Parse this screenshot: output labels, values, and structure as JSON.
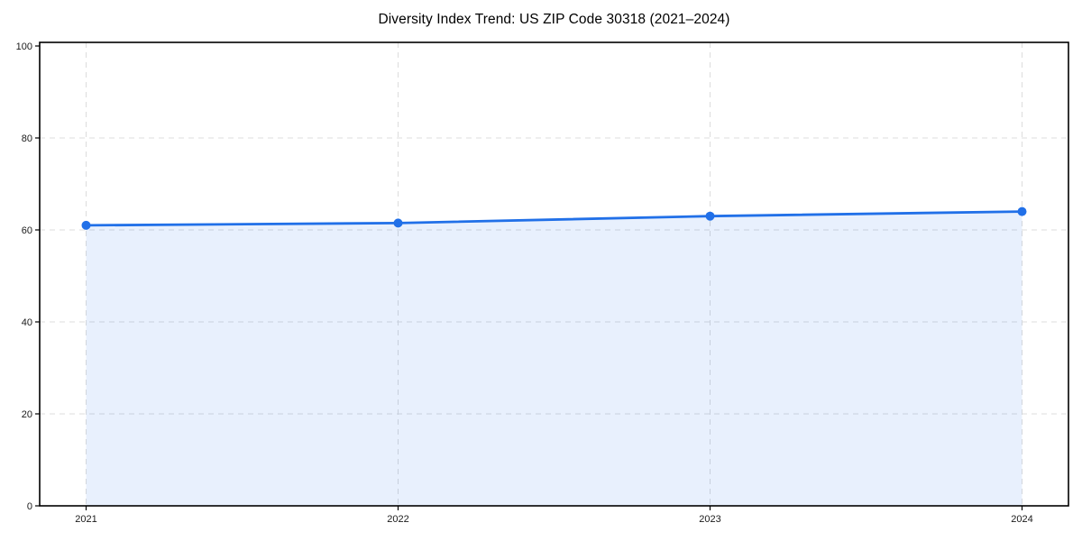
{
  "page": {
    "background": "#ffffff"
  },
  "chart_data": {
    "type": "area",
    "title": "Diversity Index Trend: US ZIP Code 30318 (2021–2024)",
    "x": [
      "2021",
      "2022",
      "2023",
      "2024"
    ],
    "series": [
      {
        "name": "Diversity Index",
        "values": [
          61,
          61.5,
          63,
          64
        ]
      }
    ],
    "xlabel": "",
    "ylabel": "",
    "ylim": [
      0,
      100
    ],
    "yticks": [
      0,
      20,
      40,
      60,
      80,
      100
    ],
    "grid": true,
    "grid_style": "dashed",
    "legend": "none",
    "marker": {
      "shape": "circle",
      "size": 5
    },
    "colors": {
      "line": "#2170e8",
      "fill": "#2170e8",
      "fill_opacity": 0.1,
      "grid": "#dcdcdc",
      "axis": "#000000",
      "tick_text": "#1a1a1a",
      "title_text": "#000000"
    }
  }
}
